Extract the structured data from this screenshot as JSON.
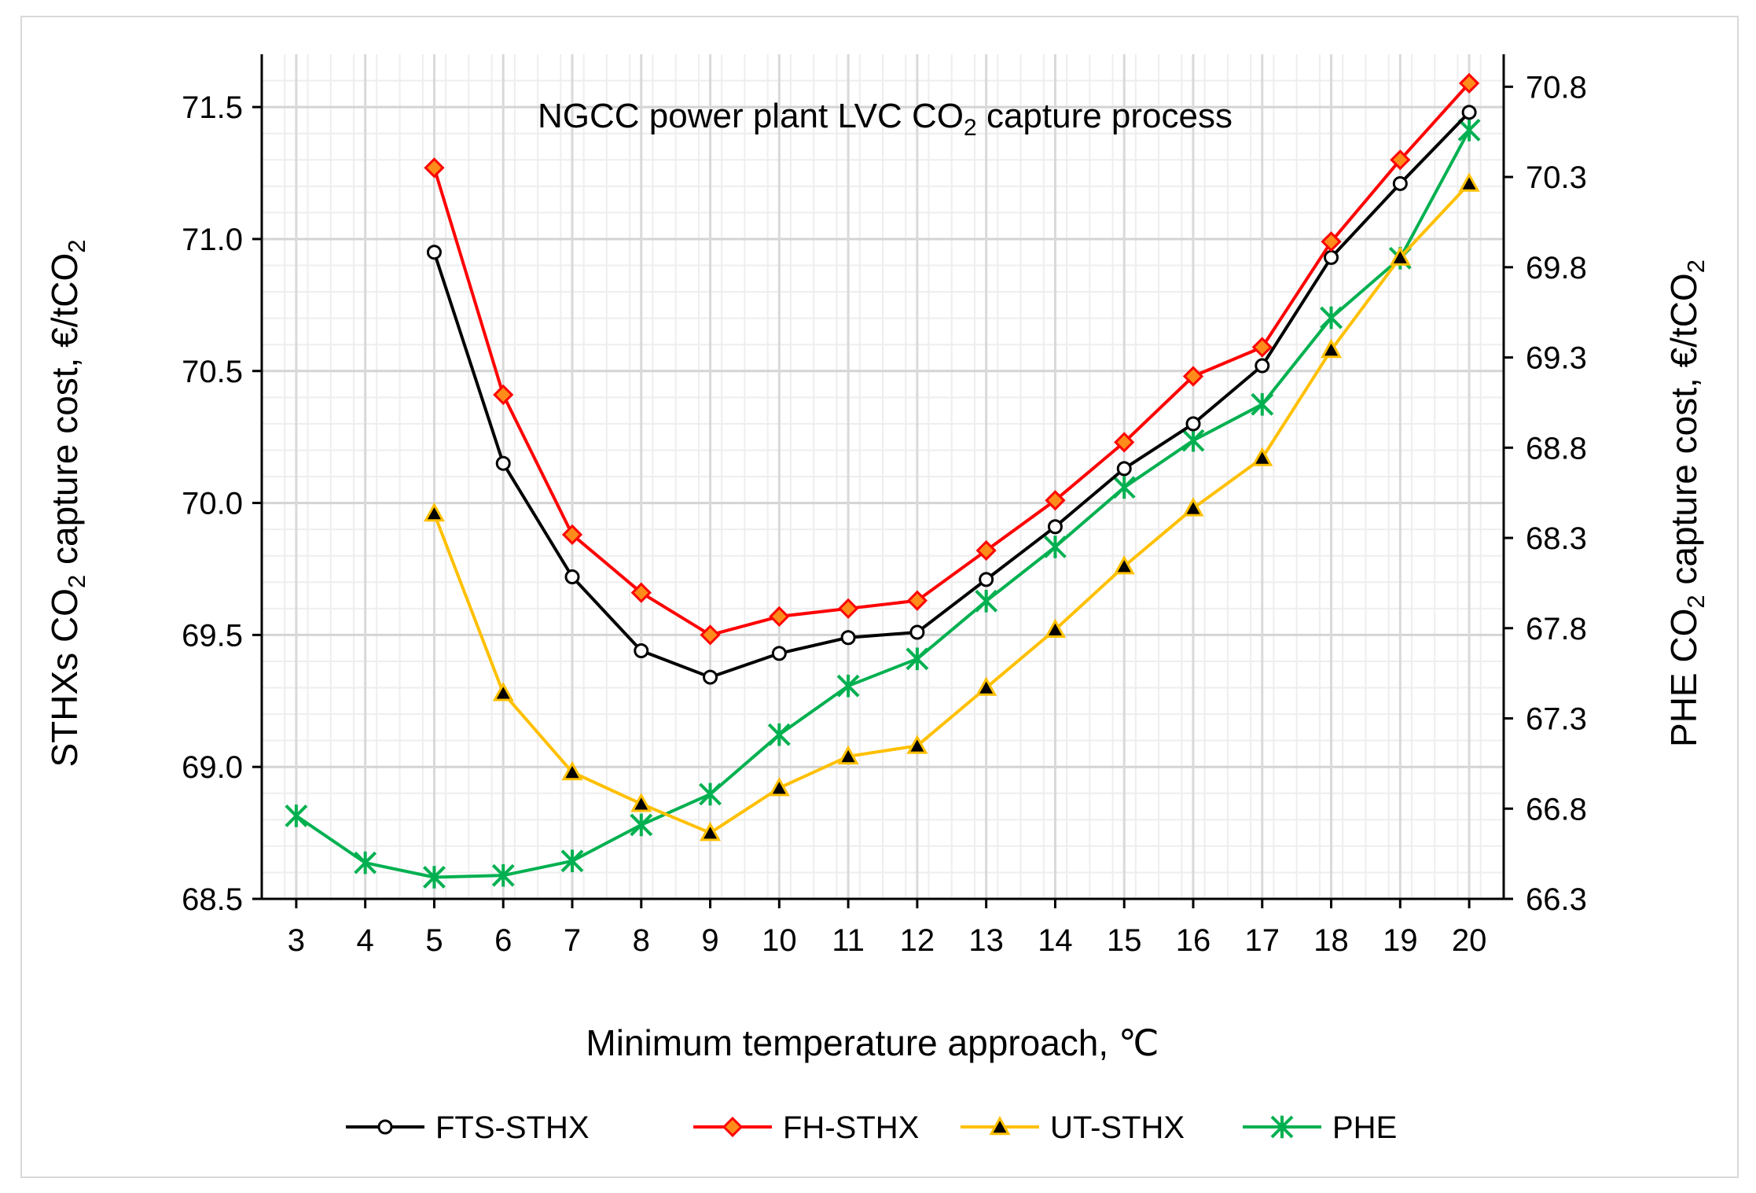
{
  "chart_data": {
    "type": "line",
    "title": "NGCC power plant LVC CO",
    "title_sub": "2",
    "title_tail": " capture process",
    "xlabel": "Minimum temperature approach, ℃",
    "ylabel_left": "STHXs CO",
    "ylabel_left_sub": "2",
    "ylabel_left_tail": " capture cost, €/tCO",
    "ylabel_left_sub2": "2",
    "ylabel_right": "PHE CO",
    "ylabel_right_sub": "2",
    "ylabel_right_tail": " capture cost, €/tCO",
    "ylabel_right_sub2": "2",
    "x": [
      3,
      4,
      5,
      6,
      7,
      8,
      9,
      10,
      11,
      12,
      13,
      14,
      15,
      16,
      17,
      18,
      19,
      20
    ],
    "xlim": [
      2.5,
      20.5
    ],
    "ylim_left": [
      68.5,
      71.7
    ],
    "ylim_right": [
      66.3,
      70.98
    ],
    "yticks_left": [
      "68.5",
      "69.0",
      "69.5",
      "70.0",
      "70.5",
      "71.0",
      "71.5"
    ],
    "yticks_right": [
      "66.3",
      "66.8",
      "67.3",
      "67.8",
      "68.3",
      "68.8",
      "69.3",
      "69.8",
      "70.3",
      "70.8"
    ],
    "grid": true,
    "legend_position": "bottom",
    "series": [
      {
        "name": "FTS-STHX",
        "axis": "left",
        "color": "#000000",
        "marker": "circle",
        "x": [
          5,
          6,
          7,
          8,
          9,
          10,
          11,
          12,
          13,
          14,
          15,
          16,
          17,
          18,
          19,
          20
        ],
        "values": [
          70.95,
          70.15,
          69.72,
          69.44,
          69.34,
          69.43,
          69.49,
          69.51,
          69.71,
          69.91,
          70.13,
          70.3,
          70.52,
          70.93,
          71.21,
          71.48
        ]
      },
      {
        "name": "FH-STHX",
        "axis": "left",
        "color": "#ff0000",
        "marker": "diamond",
        "x": [
          5,
          6,
          7,
          8,
          9,
          10,
          11,
          12,
          13,
          14,
          15,
          16,
          17,
          18,
          19,
          20
        ],
        "values": [
          71.27,
          70.41,
          69.88,
          69.66,
          69.5,
          69.57,
          69.6,
          69.63,
          69.82,
          70.01,
          70.23,
          70.48,
          70.59,
          70.99,
          71.3,
          71.59
        ]
      },
      {
        "name": "UT-STHX",
        "axis": "left",
        "color": "#ffc000",
        "marker": "triangle",
        "x": [
          5,
          6,
          7,
          8,
          9,
          10,
          11,
          12,
          13,
          14,
          15,
          16,
          17,
          18,
          19,
          20
        ],
        "values": [
          69.96,
          69.28,
          68.98,
          68.86,
          68.75,
          68.92,
          69.04,
          69.08,
          69.3,
          69.52,
          69.76,
          69.98,
          70.17,
          70.58,
          70.93,
          71.21
        ]
      },
      {
        "name": "PHE",
        "axis": "right",
        "color": "#00b050",
        "marker": "asterisk",
        "x": [
          3,
          4,
          5,
          6,
          7,
          8,
          9,
          10,
          11,
          12,
          13,
          14,
          15,
          16,
          17,
          18,
          19,
          20
        ],
        "values": [
          66.76,
          66.5,
          66.42,
          66.43,
          66.51,
          66.71,
          66.88,
          67.21,
          67.48,
          67.63,
          67.95,
          68.25,
          68.58,
          68.84,
          69.04,
          69.52,
          69.85,
          70.56
        ]
      }
    ]
  }
}
